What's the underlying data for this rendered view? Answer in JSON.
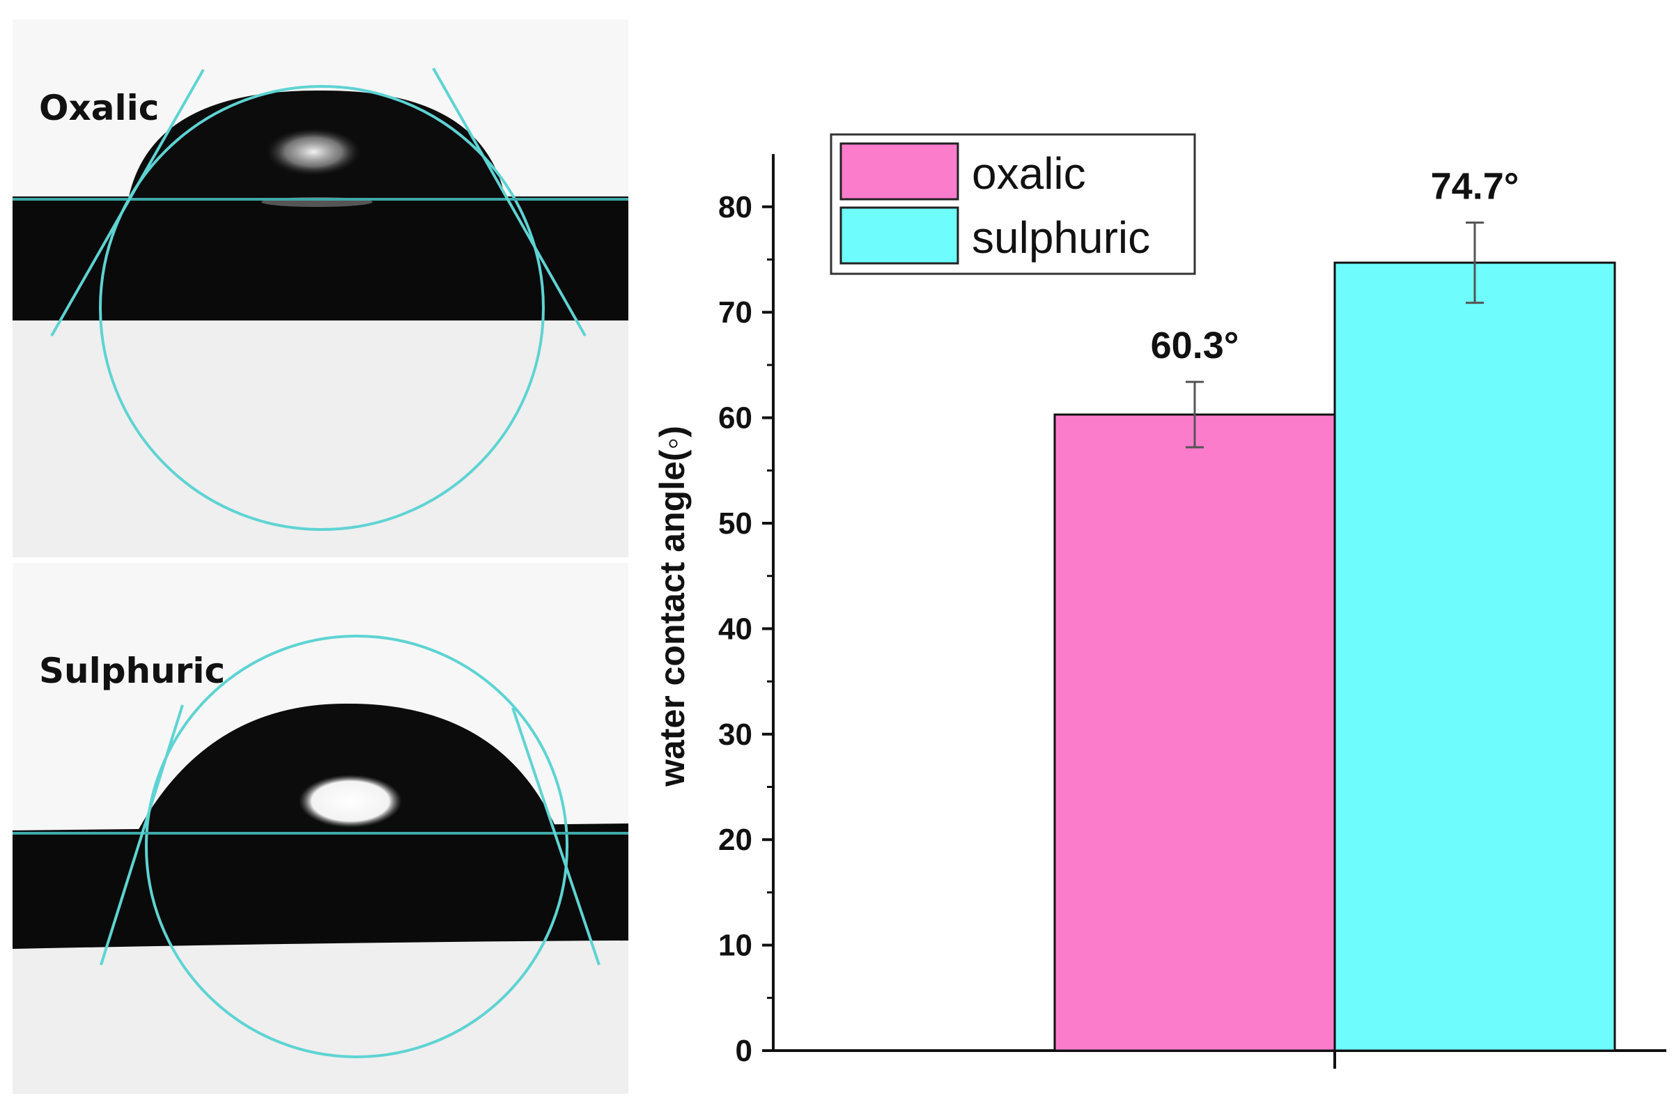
{
  "photos": [
    {
      "label": "Oxalic"
    },
    {
      "label": "Sulphuric"
    }
  ],
  "colors": {
    "oxalic": "#fc7ccc",
    "sulphuric": "#6ffcfc",
    "fit_line": "#5fd3d3",
    "droplet": "#0c0c0c",
    "substrate": "#0a0a0a",
    "photo_bg": "#efefef"
  },
  "chart_data": {
    "type": "bar",
    "title": "",
    "xlabel": "",
    "ylabel": "water contact angle(◦)",
    "ylim": [
      0,
      85
    ],
    "yticks": [
      0,
      10,
      20,
      30,
      40,
      50,
      60,
      70,
      80
    ],
    "grid": false,
    "legend_position": "top-left",
    "series": [
      {
        "name": "oxalic",
        "value": 60.3,
        "error": 3.1,
        "label": "60.3°",
        "color": "#fc7ccc"
      },
      {
        "name": "sulphuric",
        "value": 74.7,
        "error": 3.8,
        "label": "74.7°",
        "color": "#6ffcfc"
      }
    ]
  }
}
